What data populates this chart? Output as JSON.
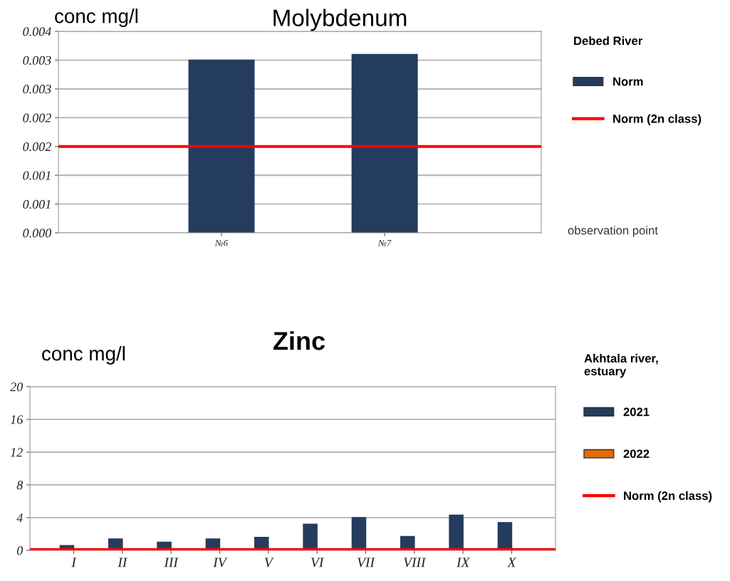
{
  "chart_data": [
    {
      "type": "bar",
      "title": "Molybdenum",
      "legend_title": "Debed River",
      "ylabel": "conc mg/l",
      "xlabel": "observation point",
      "categories": [
        "№6",
        "№7"
      ],
      "series": [
        {
          "name": "Norm",
          "color": "#243d5e",
          "values": [
            0.003,
            0.0031
          ]
        }
      ],
      "ylim": [
        0,
        0.0035
      ],
      "yticks": [
        {
          "value": 0,
          "label": "0.000"
        },
        {
          "value": 0.0005,
          "label": "0.001"
        },
        {
          "value": 0.001,
          "label": "0.001"
        },
        {
          "value": 0.0015,
          "label": "0.002"
        },
        {
          "value": 0.002,
          "label": "0.002"
        },
        {
          "value": 0.0025,
          "label": "0.003"
        },
        {
          "value": 0.003,
          "label": "0.003"
        },
        {
          "value": 0.0035,
          "label": "0.004"
        }
      ],
      "ref_lines": [
        {
          "axis": "y",
          "value": 0.0015,
          "label": "Norm (2n class)",
          "color": "#ff0000"
        }
      ],
      "grid": "y",
      "legend": "right"
    },
    {
      "type": "bar",
      "title": "Zinc",
      "legend_title": "Akhtala river,\nestuary",
      "ylabel": "conc mg/l",
      "categories": [
        "I",
        "II",
        "III",
        "IV",
        "V",
        "VI",
        "VII",
        "VIII",
        "IX",
        "X"
      ],
      "series": [
        {
          "name": "2021",
          "color": "#243d5e",
          "values": [
            0.6,
            1.4,
            1.0,
            1.4,
            1.6,
            3.2,
            4.0,
            1.7,
            4.3,
            3.4
          ]
        },
        {
          "name": "2022",
          "color": "#e36c09",
          "values": [
            null,
            null,
            null,
            null,
            null,
            null,
            null,
            null,
            null,
            null
          ]
        }
      ],
      "ylim": [
        0,
        20
      ],
      "yticks": [
        0,
        4,
        8,
        12,
        16,
        20
      ],
      "ref_lines": [
        {
          "axis": "y",
          "value": 0.1,
          "label": "Norm (2n class)",
          "color": "#ff0000"
        }
      ],
      "grid": "y",
      "legend": "right"
    }
  ]
}
